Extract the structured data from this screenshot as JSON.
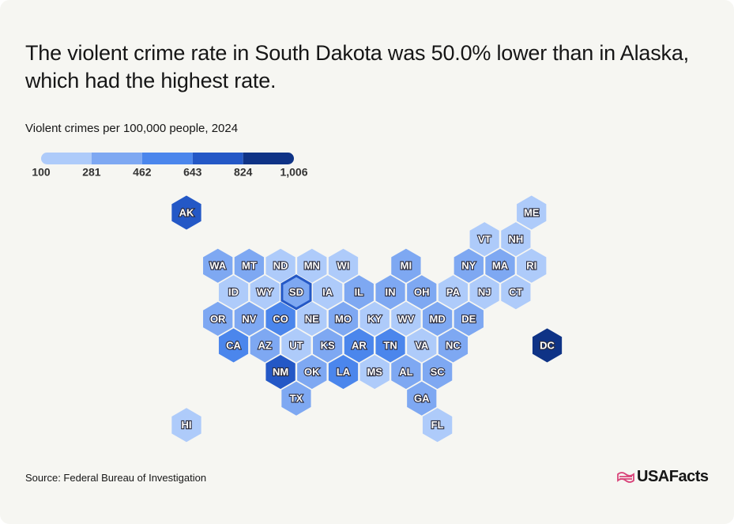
{
  "header": {
    "title": "The violent crime rate in South Dakota was 50.0% lower than in Alaska, which had the highest rate.",
    "subtitle": "Violent crimes per 100,000 people, 2024"
  },
  "legend": {
    "ticks": [
      100,
      281,
      462,
      643,
      824,
      {
        "value": 1006,
        "label": "1,006"
      }
    ],
    "colors": [
      "#aecbfa",
      "#7ea8f2",
      "#4b86ec",
      "#2458c6",
      "#0f3386"
    ]
  },
  "states": [
    {
      "label": "AK",
      "color": "#2458c6"
    },
    {
      "label": "ME",
      "color": "#aecbfa"
    },
    {
      "label": "VT",
      "color": "#aecbfa"
    },
    {
      "label": "NH",
      "color": "#aecbfa"
    },
    {
      "label": "WA",
      "color": "#7ea8f2"
    },
    {
      "label": "MT",
      "color": "#7ea8f2"
    },
    {
      "label": "ND",
      "color": "#aecbfa"
    },
    {
      "label": "MN",
      "color": "#aecbfa"
    },
    {
      "label": "WI",
      "color": "#aecbfa"
    },
    {
      "label": "MI",
      "color": "#7ea8f2"
    },
    {
      "label": "NY",
      "color": "#7ea8f2"
    },
    {
      "label": "MA",
      "color": "#7ea8f2"
    },
    {
      "label": "RI",
      "color": "#aecbfa"
    },
    {
      "label": "ID",
      "color": "#aecbfa"
    },
    {
      "label": "WY",
      "color": "#aecbfa"
    },
    {
      "label": "SD",
      "color": "#7ea8f2",
      "highlighted": true
    },
    {
      "label": "IA",
      "color": "#aecbfa"
    },
    {
      "label": "IL",
      "color": "#7ea8f2"
    },
    {
      "label": "IN",
      "color": "#7ea8f2"
    },
    {
      "label": "OH",
      "color": "#7ea8f2"
    },
    {
      "label": "PA",
      "color": "#aecbfa"
    },
    {
      "label": "NJ",
      "color": "#aecbfa"
    },
    {
      "label": "CT",
      "color": "#aecbfa"
    },
    {
      "label": "OR",
      "color": "#7ea8f2"
    },
    {
      "label": "NV",
      "color": "#7ea8f2"
    },
    {
      "label": "CO",
      "color": "#4b86ec"
    },
    {
      "label": "NE",
      "color": "#aecbfa"
    },
    {
      "label": "MO",
      "color": "#7ea8f2"
    },
    {
      "label": "KY",
      "color": "#aecbfa"
    },
    {
      "label": "WV",
      "color": "#aecbfa"
    },
    {
      "label": "MD",
      "color": "#7ea8f2"
    },
    {
      "label": "DE",
      "color": "#7ea8f2"
    },
    {
      "label": "CA",
      "color": "#4b86ec"
    },
    {
      "label": "AZ",
      "color": "#7ea8f2"
    },
    {
      "label": "UT",
      "color": "#aecbfa"
    },
    {
      "label": "KS",
      "color": "#7ea8f2"
    },
    {
      "label": "AR",
      "color": "#4b86ec"
    },
    {
      "label": "TN",
      "color": "#4b86ec"
    },
    {
      "label": "VA",
      "color": "#aecbfa"
    },
    {
      "label": "NC",
      "color": "#7ea8f2"
    },
    {
      "label": "DC",
      "color": "#0f3386"
    },
    {
      "label": "NM",
      "color": "#2458c6"
    },
    {
      "label": "OK",
      "color": "#7ea8f2"
    },
    {
      "label": "LA",
      "color": "#4b86ec"
    },
    {
      "label": "MS",
      "color": "#aecbfa"
    },
    {
      "label": "AL",
      "color": "#7ea8f2"
    },
    {
      "label": "SC",
      "color": "#7ea8f2"
    },
    {
      "label": "TX",
      "color": "#7ea8f2"
    },
    {
      "label": "GA",
      "color": "#7ea8f2"
    },
    {
      "label": "HI",
      "color": "#aecbfa"
    },
    {
      "label": "FL",
      "color": "#aecbfa"
    }
  ],
  "footer": {
    "source": "Source: Federal Bureau of Investigation",
    "logo": "USAFacts"
  }
}
